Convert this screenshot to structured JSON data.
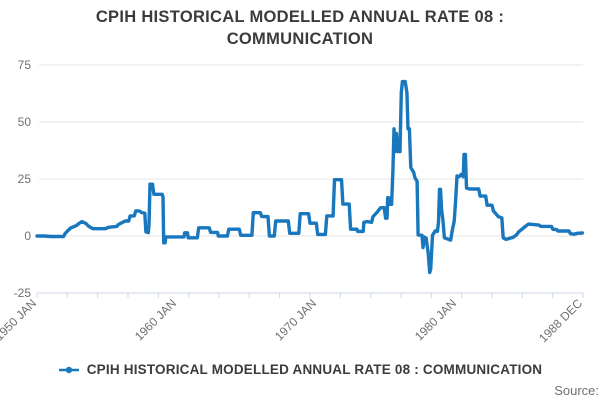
{
  "title": "CPIH HISTORICAL MODELLED ANNUAL RATE 08 : COMMUNICATION",
  "legend": {
    "label": "CPIH HISTORICAL MODELLED ANNUAL RATE 08 : COMMUNICATION"
  },
  "source": {
    "label": "Source:"
  },
  "colors": {
    "line": "#1877bd",
    "grid": "#e6e6e6",
    "axis": "#ccd6eb",
    "tick_text": "#707070",
    "title_text": "#3b3b3b"
  },
  "chart_data": {
    "type": "line",
    "title": "CPIH HISTORICAL MODELLED ANNUAL RATE 08 : COMMUNICATION",
    "xlabel": "",
    "ylabel": "",
    "x_axis": {
      "range": [
        1950,
        1989
      ],
      "minor_tick_count": 19,
      "labeled_ticks": [
        {
          "label": "1950 JAN",
          "x": 1950.0
        },
        {
          "label": "1960 JAN",
          "x": 1960.0
        },
        {
          "label": "1970 JAN",
          "x": 1970.0
        },
        {
          "label": "1980 JAN",
          "x": 1980.0
        },
        {
          "label": "1988 DEC",
          "x": 1989.0
        }
      ]
    },
    "y_axis": {
      "range": [
        -25,
        75
      ],
      "ticks": [
        75,
        50,
        25,
        0,
        -25
      ]
    },
    "grid": "horizontal",
    "legend_position": "bottom-center",
    "series": [
      {
        "name": "CPIH HISTORICAL MODELLED ANNUAL RATE 08 : COMMUNICATION",
        "points": [
          [
            1950.0,
            0
          ],
          [
            1950.5,
            0
          ],
          [
            1951.0,
            -0.2
          ],
          [
            1951.9,
            -0.2
          ],
          [
            1952.0,
            1
          ],
          [
            1952.15,
            2
          ],
          [
            1952.4,
            3.5
          ],
          [
            1952.8,
            4.5
          ],
          [
            1953.0,
            5.5
          ],
          [
            1953.2,
            6.3
          ],
          [
            1953.5,
            5.5
          ],
          [
            1953.7,
            4.2
          ],
          [
            1954.0,
            3.2
          ],
          [
            1954.9,
            3.2
          ],
          [
            1955.1,
            3.8
          ],
          [
            1955.7,
            4.2
          ],
          [
            1955.8,
            5
          ],
          [
            1956.3,
            6.6
          ],
          [
            1956.55,
            6.6
          ],
          [
            1956.65,
            8.8
          ],
          [
            1956.95,
            8.8
          ],
          [
            1957.05,
            11
          ],
          [
            1957.3,
            11
          ],
          [
            1957.5,
            10.2
          ],
          [
            1957.7,
            10
          ],
          [
            1957.78,
            1.8
          ],
          [
            1957.95,
            1.5
          ],
          [
            1958.0,
            5
          ],
          [
            1958.07,
            22.7
          ],
          [
            1958.25,
            22.7
          ],
          [
            1958.35,
            18.3
          ],
          [
            1958.95,
            18.3
          ],
          [
            1959.0,
            17
          ],
          [
            1959.05,
            -3
          ],
          [
            1959.15,
            -3
          ],
          [
            1959.2,
            -0.4
          ],
          [
            1960.5,
            -0.4
          ],
          [
            1960.55,
            1.4
          ],
          [
            1960.75,
            1.4
          ],
          [
            1960.8,
            -0.8
          ],
          [
            1961.45,
            -0.8
          ],
          [
            1961.55,
            3.6
          ],
          [
            1962.3,
            3.6
          ],
          [
            1962.4,
            1.6
          ],
          [
            1962.9,
            1.6
          ],
          [
            1962.95,
            0
          ],
          [
            1963.6,
            0
          ],
          [
            1963.7,
            3
          ],
          [
            1964.45,
            3
          ],
          [
            1964.55,
            0.3
          ],
          [
            1965.35,
            0.3
          ],
          [
            1965.45,
            10.2
          ],
          [
            1965.95,
            10.2
          ],
          [
            1966.05,
            8.5
          ],
          [
            1966.5,
            8.5
          ],
          [
            1966.6,
            0
          ],
          [
            1966.95,
            0
          ],
          [
            1967.05,
            6.6
          ],
          [
            1967.95,
            6.6
          ],
          [
            1968.05,
            1.2
          ],
          [
            1968.7,
            1.2
          ],
          [
            1968.8,
            9.8
          ],
          [
            1969.4,
            9.8
          ],
          [
            1969.5,
            5.6
          ],
          [
            1969.95,
            5.6
          ],
          [
            1970.05,
            0.7
          ],
          [
            1970.6,
            0.7
          ],
          [
            1970.7,
            8.8
          ],
          [
            1971.15,
            8.8
          ],
          [
            1971.25,
            24.7
          ],
          [
            1971.75,
            24.7
          ],
          [
            1971.85,
            14
          ],
          [
            1972.3,
            14
          ],
          [
            1972.4,
            3
          ],
          [
            1972.85,
            3
          ],
          [
            1972.9,
            2
          ],
          [
            1973.3,
            2
          ],
          [
            1973.35,
            6
          ],
          [
            1973.55,
            6.3
          ],
          [
            1973.9,
            6
          ],
          [
            1974.0,
            8.5
          ],
          [
            1974.3,
            10.5
          ],
          [
            1974.45,
            11.7
          ],
          [
            1974.55,
            12.4
          ],
          [
            1974.8,
            12.4
          ],
          [
            1974.9,
            7.8
          ],
          [
            1975.0,
            7.8
          ],
          [
            1975.05,
            16.8
          ],
          [
            1975.12,
            16.8
          ],
          [
            1975.2,
            13.9
          ],
          [
            1975.33,
            13.9
          ],
          [
            1975.42,
            28.5
          ],
          [
            1975.5,
            47
          ],
          [
            1975.58,
            37
          ],
          [
            1975.68,
            45
          ],
          [
            1975.78,
            37
          ],
          [
            1975.93,
            37
          ],
          [
            1976.02,
            63
          ],
          [
            1976.1,
            67.7
          ],
          [
            1976.3,
            67.7
          ],
          [
            1976.42,
            63
          ],
          [
            1976.5,
            47
          ],
          [
            1976.6,
            47
          ],
          [
            1976.7,
            30
          ],
          [
            1976.9,
            28
          ],
          [
            1977.0,
            25.5
          ],
          [
            1977.15,
            24
          ],
          [
            1977.22,
            0.5
          ],
          [
            1977.5,
            0.3
          ],
          [
            1977.57,
            -5.1
          ],
          [
            1977.68,
            -0.5
          ],
          [
            1977.8,
            -1
          ],
          [
            1977.95,
            -8
          ],
          [
            1978.05,
            -16
          ],
          [
            1978.12,
            -14.5
          ],
          [
            1978.25,
            0.3
          ],
          [
            1978.45,
            2.3
          ],
          [
            1978.6,
            2
          ],
          [
            1978.68,
            6
          ],
          [
            1978.75,
            20.5
          ],
          [
            1978.82,
            20.5
          ],
          [
            1978.9,
            11.5
          ],
          [
            1979.0,
            6.6
          ],
          [
            1979.1,
            -0.8
          ],
          [
            1979.55,
            -1.8
          ],
          [
            1979.65,
            2
          ],
          [
            1979.8,
            6.5
          ],
          [
            1979.9,
            15.3
          ],
          [
            1980.0,
            26.3
          ],
          [
            1980.15,
            26
          ],
          [
            1980.3,
            27
          ],
          [
            1980.45,
            26
          ],
          [
            1980.5,
            35.8
          ],
          [
            1980.6,
            35.8
          ],
          [
            1980.68,
            21
          ],
          [
            1980.9,
            20.6
          ],
          [
            1981.55,
            20.6
          ],
          [
            1981.65,
            17.5
          ],
          [
            1982.05,
            17.5
          ],
          [
            1982.15,
            13.5
          ],
          [
            1982.5,
            13.5
          ],
          [
            1982.6,
            11
          ],
          [
            1982.95,
            8.5
          ],
          [
            1983.2,
            8
          ],
          [
            1983.3,
            -0.8
          ],
          [
            1983.5,
            -1.5
          ],
          [
            1984.0,
            -0.6
          ],
          [
            1984.25,
            0.5
          ],
          [
            1984.4,
            1.8
          ],
          [
            1984.95,
            4.5
          ],
          [
            1985.1,
            5.2
          ],
          [
            1985.5,
            5
          ],
          [
            1985.85,
            4.8
          ],
          [
            1986.0,
            4.2
          ],
          [
            1986.75,
            4.2
          ],
          [
            1986.85,
            2.9
          ],
          [
            1987.1,
            2.9
          ],
          [
            1987.2,
            2.2
          ],
          [
            1988.0,
            2.2
          ],
          [
            1988.1,
            1
          ],
          [
            1988.35,
            0.8
          ],
          [
            1988.6,
            1.2
          ],
          [
            1988.95,
            1.3
          ]
        ]
      }
    ]
  }
}
